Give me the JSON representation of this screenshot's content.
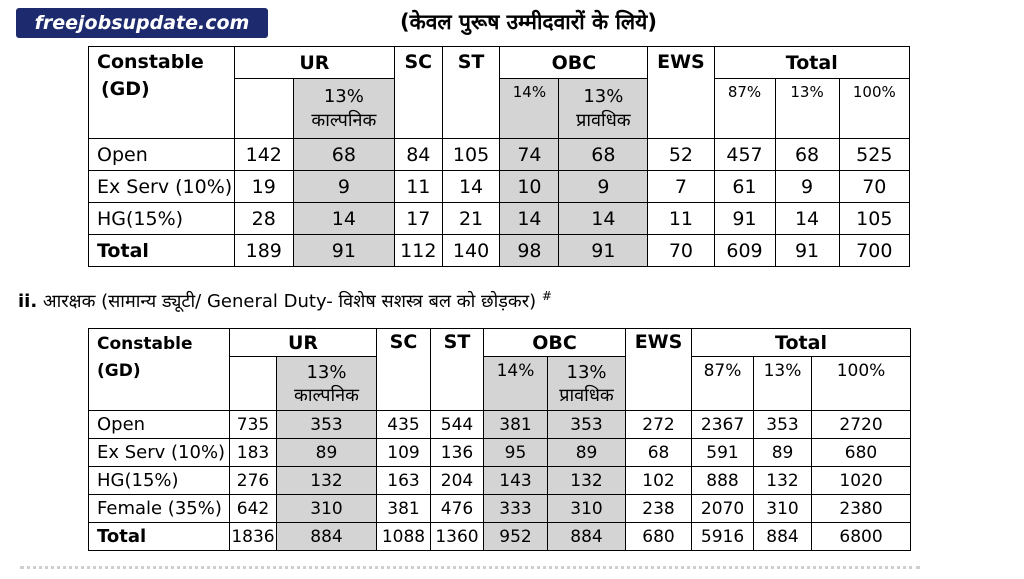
{
  "watermark": "freejobsupdate.com",
  "heading1": "(केवल पुरूष उम्मीदवारों के लिये)",
  "heading2": {
    "prefix": "ii.",
    "text": " आरक्षक (सामान्य ड्यूटी/ General Duty- विशेष सशस्त्र बल को छोड़कर) ",
    "mark": "#"
  },
  "headers": {
    "corner_line1": "Constable",
    "corner_line2": "(GD)",
    "ur": "UR",
    "sc": "SC",
    "st": "ST",
    "obc": "OBC",
    "ews": "EWS",
    "total": "Total",
    "ur_sub": "13% काल्पनिक",
    "obc_sub1": "14%",
    "obc_sub2": "13% प्रावधिक",
    "total_sub1": "87%",
    "total_sub2": "13%",
    "total_sub3": "100%"
  },
  "table1": {
    "rows": [
      {
        "label": "Open",
        "values": [
          "142",
          "68",
          "84",
          "105",
          "74",
          "68",
          "52",
          "457",
          "68",
          "525"
        ]
      },
      {
        "label": "Ex Serv (10%)",
        "values": [
          "19",
          "9",
          "11",
          "14",
          "10",
          "9",
          "7",
          "61",
          "9",
          "70"
        ]
      },
      {
        "label": "HG(15%)",
        "values": [
          "28",
          "14",
          "17",
          "21",
          "14",
          "14",
          "11",
          "91",
          "14",
          "105"
        ]
      },
      {
        "label": "Total",
        "values": [
          "189",
          "91",
          "112",
          "140",
          "98",
          "91",
          "70",
          "609",
          "91",
          "700"
        ]
      }
    ]
  },
  "table2": {
    "rows": [
      {
        "label": "Open",
        "values": [
          "735",
          "353",
          "435",
          "544",
          "381",
          "353",
          "272",
          "2367",
          "353",
          "2720"
        ]
      },
      {
        "label": "Ex Serv (10%)",
        "values": [
          "183",
          "89",
          "109",
          "136",
          "95",
          "89",
          "68",
          "591",
          "89",
          "680"
        ]
      },
      {
        "label": "HG(15%)",
        "values": [
          "276",
          "132",
          "163",
          "204",
          "143",
          "132",
          "102",
          "888",
          "132",
          "1020"
        ]
      },
      {
        "label": "Female (35%)",
        "values": [
          "642",
          "310",
          "381",
          "476",
          "333",
          "310",
          "238",
          "2070",
          "310",
          "2380"
        ]
      },
      {
        "label": "Total",
        "values": [
          "1836",
          "884",
          "1088",
          "1360",
          "952",
          "884",
          "680",
          "5916",
          "884",
          "6800"
        ]
      }
    ]
  }
}
